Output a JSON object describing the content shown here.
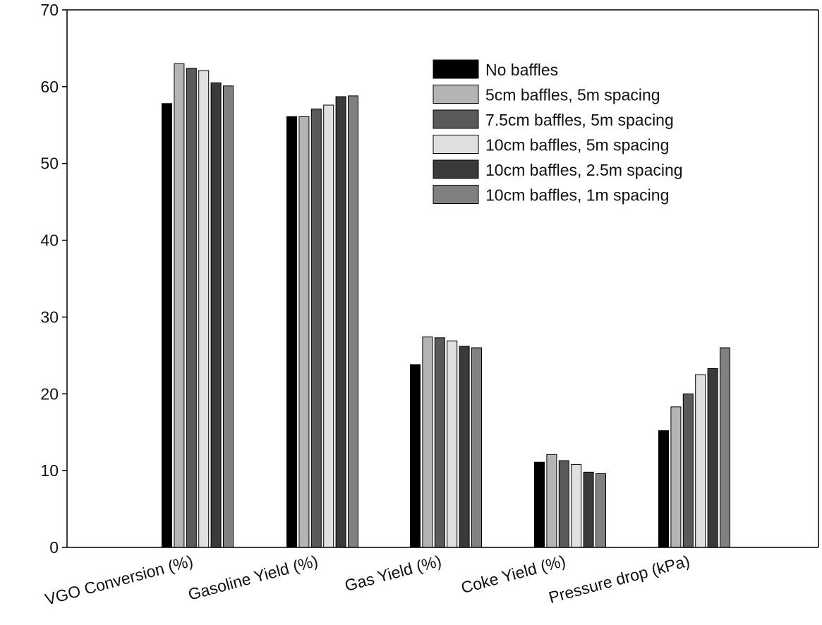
{
  "chart_data": {
    "type": "bar",
    "title": "",
    "xlabel": "",
    "ylabel": "",
    "ylim": [
      0,
      70
    ],
    "yticks": [
      0,
      10,
      20,
      30,
      40,
      50,
      60,
      70
    ],
    "grid": false,
    "legend_position": "top-right",
    "categories": [
      "VGO Conversion (%)",
      "Gasoline Yield (%)",
      "Gas Yield (%)",
      "Coke Yield (%)",
      "Pressure drop (kPa)"
    ],
    "series": [
      {
        "name": "No baffles",
        "color": "#000000",
        "values": [
          57.8,
          56.1,
          23.8,
          11.1,
          15.2
        ]
      },
      {
        "name": "5cm baffles, 5m spacing",
        "color": "#b4b4b4",
        "values": [
          63.0,
          56.1,
          27.4,
          12.1,
          18.3
        ]
      },
      {
        "name": "7.5cm baffles, 5m spacing",
        "color": "#5a5a5a",
        "values": [
          62.4,
          57.1,
          27.3,
          11.3,
          20.0
        ]
      },
      {
        "name": "10cm baffles, 5m spacing",
        "color": "#e0e0e0",
        "values": [
          62.1,
          57.6,
          26.9,
          10.8,
          22.5
        ]
      },
      {
        "name": "10cm baffles, 2.5m spacing",
        "color": "#3a3a3a",
        "values": [
          60.5,
          58.7,
          26.2,
          9.8,
          23.3
        ]
      },
      {
        "name": "10cm baffles, 1m spacing",
        "color": "#808080",
        "values": [
          60.1,
          58.8,
          26.0,
          9.6,
          26.0
        ]
      }
    ]
  }
}
